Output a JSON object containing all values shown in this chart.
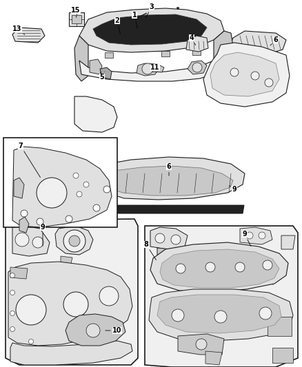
{
  "figsize": [
    4.38,
    5.33
  ],
  "dpi": 100,
  "bg": "#ffffff",
  "lc": "#1a1a1a",
  "fc_light": "#f0f0f0",
  "fc_mid": "#e0e0e0",
  "fc_dark": "#c8c8c8",
  "fc_darker": "#a8a8a8",
  "fc_black": "#222222",
  "lw_main": 0.8,
  "lw_thin": 0.5,
  "lw_thick": 1.2
}
